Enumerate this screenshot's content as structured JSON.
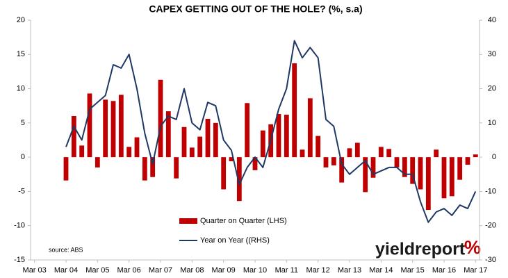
{
  "chart_data": {
    "type": "bar-line",
    "title": "CAPEX GETTING OUT OF THE HOLE? (%, s.a)",
    "categories": [
      "Mar 03",
      null,
      null,
      null,
      "Mar 04",
      null,
      null,
      null,
      "Mar 05",
      null,
      null,
      null,
      "Mar 06",
      null,
      null,
      null,
      "Mar 07",
      null,
      null,
      null,
      "Mar 08",
      null,
      null,
      null,
      "Mar 09",
      null,
      null,
      null,
      "Mar 10",
      null,
      null,
      null,
      "Mar 11",
      null,
      null,
      null,
      "Mar 12",
      null,
      null,
      null,
      "Mar 13",
      null,
      null,
      null,
      "Mar 14",
      null,
      null,
      null,
      "Mar 15",
      null,
      null,
      null,
      "Mar 16",
      null,
      null,
      null,
      "Mar 17"
    ],
    "series": [
      {
        "name": "Quarter on Quarter (LHS)",
        "color": "#c00000",
        "kind": "bar",
        "axis": "y",
        "values": [
          null,
          null,
          null,
          null,
          -3.4,
          6.0,
          1.7,
          9.3,
          -1.5,
          8.4,
          8.2,
          9.1,
          1.5,
          2.9,
          -3.4,
          -2.9,
          11.3,
          6.7,
          -3.1,
          4.4,
          1.4,
          3.0,
          5.6,
          5.0,
          -4.7,
          -0.6,
          -6.4,
          7.9,
          -1.9,
          3.9,
          4.8,
          6.3,
          6.2,
          13.7,
          1.1,
          8.6,
          3.1,
          -1.5,
          -1.2,
          -3.7,
          1.3,
          2.1,
          -5.1,
          -3.0,
          1.5,
          1.2,
          -1.5,
          -2.9,
          -3.9,
          -4.7,
          -7.7,
          1.1,
          -6.0,
          -5.7,
          -3.3,
          -1.1,
          0.4
        ]
      },
      {
        "name": "Year on Year ((RHS)",
        "color": "#1f3864",
        "kind": "line",
        "axis": "y2",
        "values": [
          null,
          null,
          null,
          null,
          3,
          9,
          5,
          14,
          16,
          18,
          27,
          26,
          30,
          20,
          7,
          -2,
          9,
          12,
          11,
          20,
          10,
          8,
          16,
          15,
          5,
          2,
          -8,
          -3,
          0,
          -3,
          5,
          14,
          20,
          34,
          29,
          32,
          29,
          11,
          9,
          -2,
          -5,
          -3,
          -1,
          -5,
          -4,
          -3,
          -3,
          -5,
          -5,
          -13,
          -19,
          -16,
          -15,
          -17,
          -14,
          -15,
          -10
        ]
      }
    ],
    "ylim": [
      -15,
      20
    ],
    "yticks": [
      -15,
      -10,
      -5,
      0,
      5,
      10,
      15,
      20
    ],
    "y2lim": [
      -30,
      40
    ],
    "y2ticks": [
      -30,
      -20,
      -10,
      0,
      10,
      20,
      30,
      40
    ],
    "grid": false,
    "source": "source: ABS",
    "logo": "yieldreport",
    "logo_mark": "%"
  }
}
